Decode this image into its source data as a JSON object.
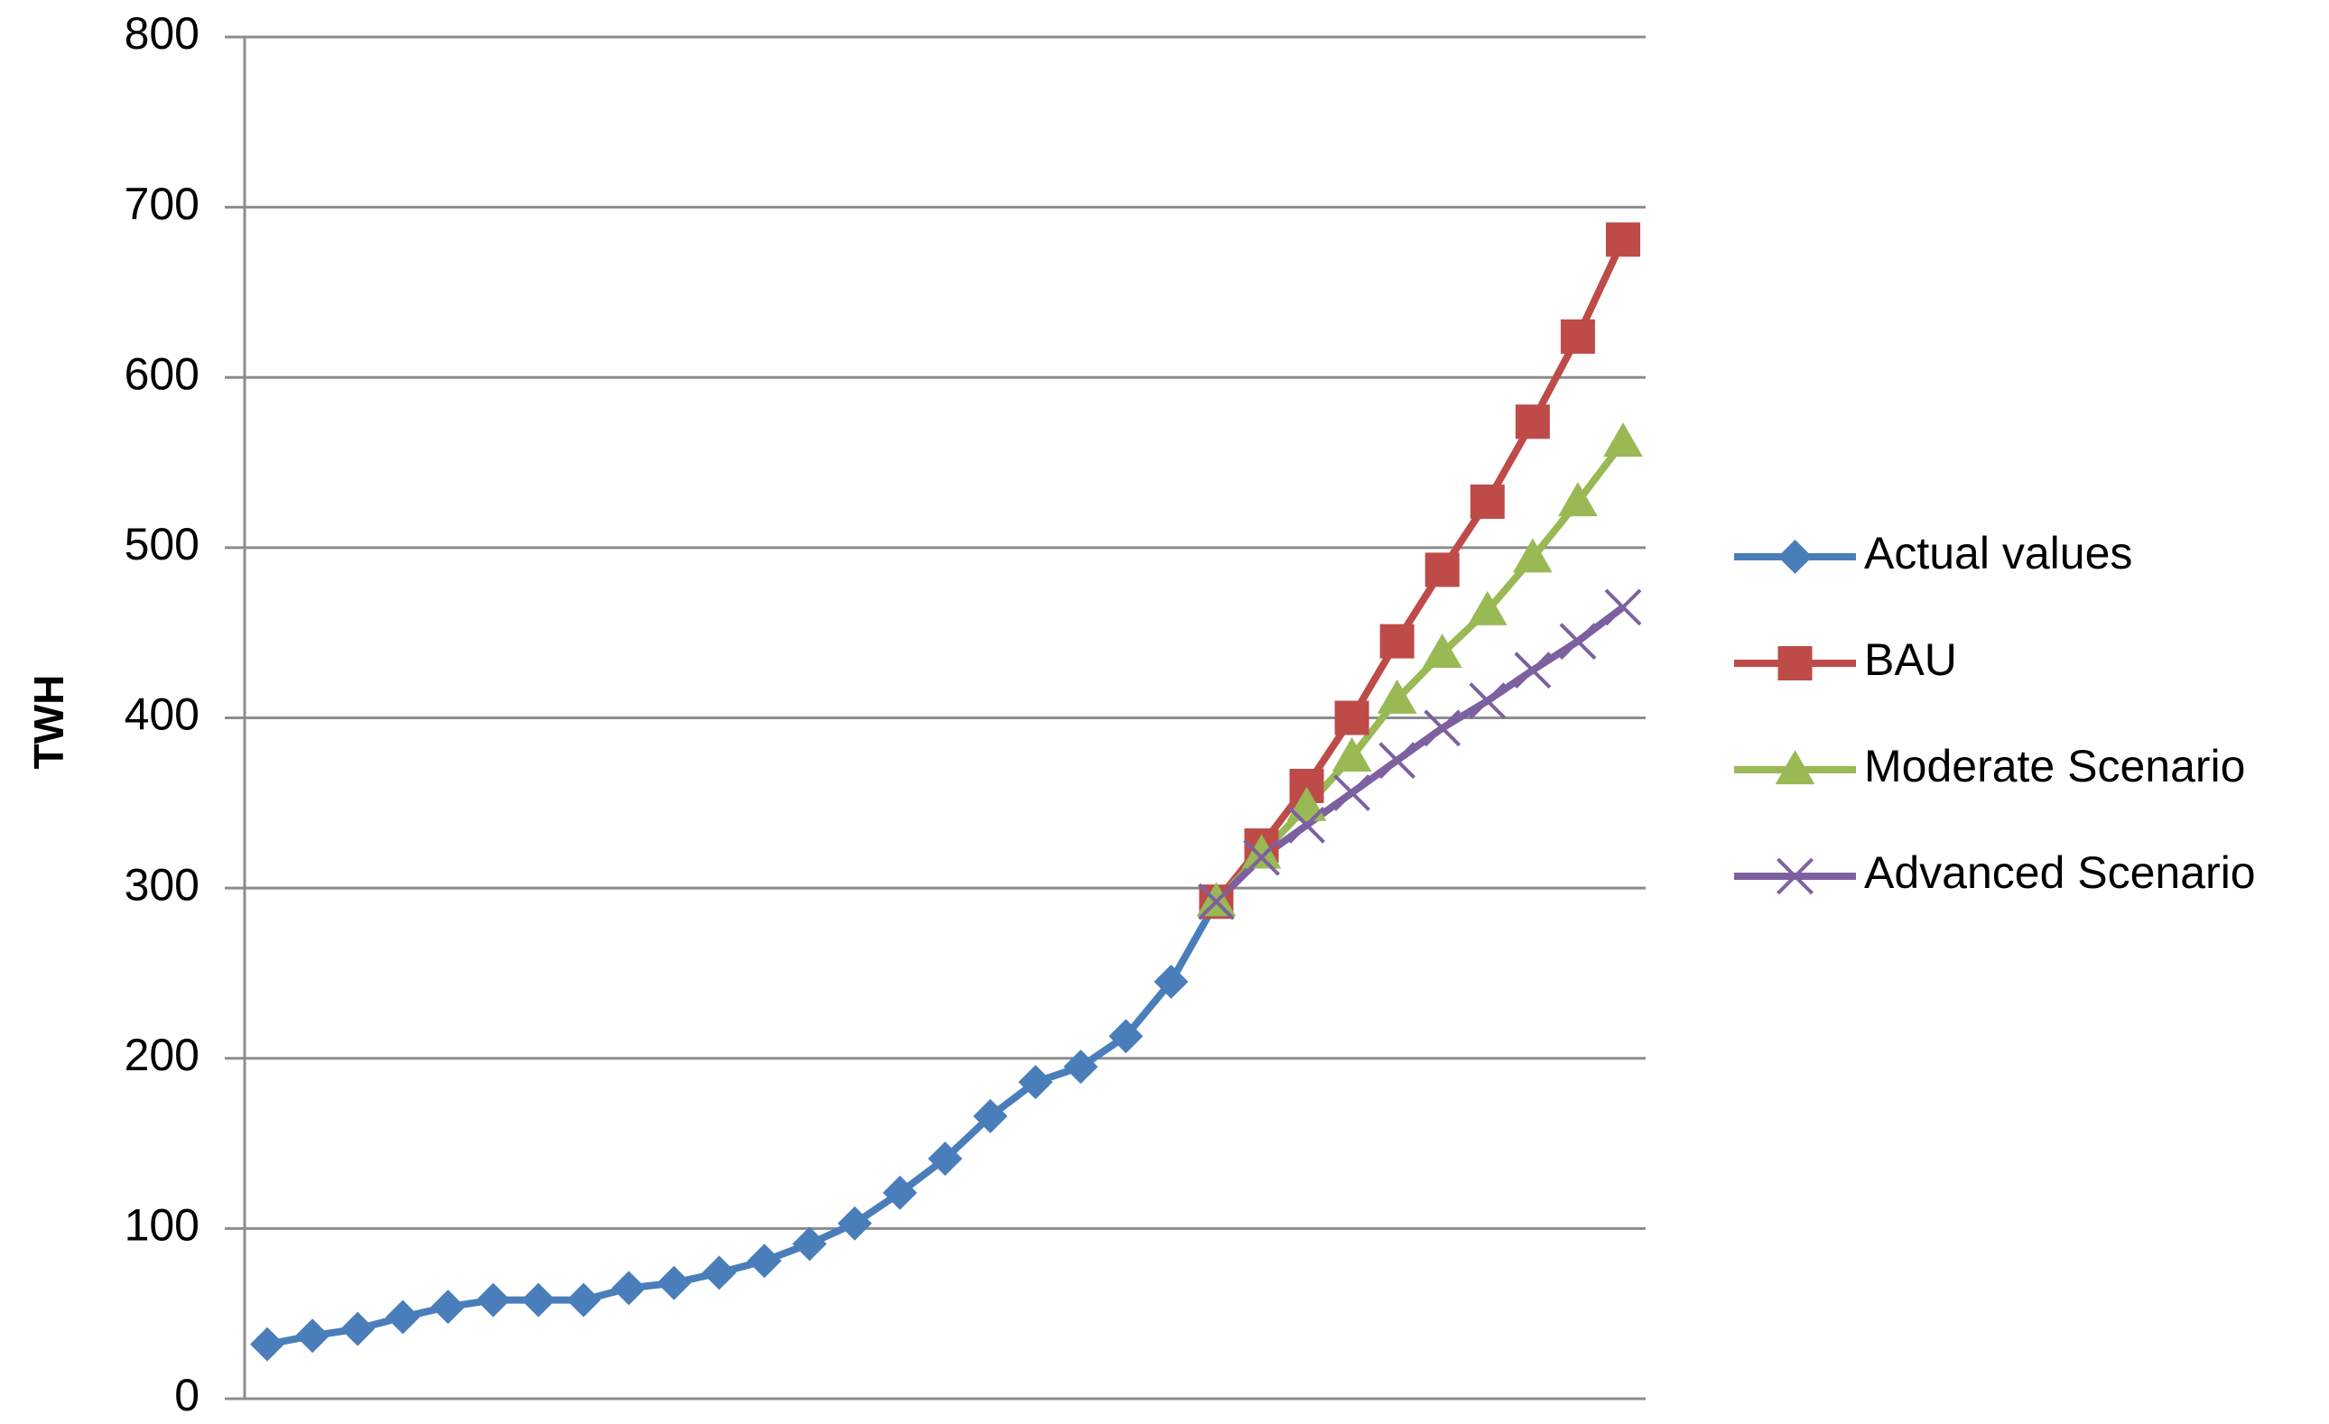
{
  "chart_data": {
    "type": "line",
    "ylabel": "TWH",
    "categories": [
      null,
      null,
      null,
      null,
      null,
      null,
      null,
      null,
      null,
      null,
      null,
      null,
      null,
      null,
      null,
      null,
      null,
      null,
      null,
      null,
      null,
      null,
      null,
      null,
      null,
      null,
      null,
      null,
      null,
      null,
      null
    ],
    "series": [
      {
        "name": "Actual values",
        "color": "#4a7ebb",
        "marker": "diamond",
        "values": [
          32,
          37,
          41,
          48,
          54,
          58,
          58,
          58,
          65,
          68,
          74,
          81,
          91,
          103,
          121,
          141,
          166,
          186,
          195,
          213,
          245,
          292,
          null,
          null,
          null,
          null,
          null,
          null,
          null,
          null,
          null
        ]
      },
      {
        "name": "BAU",
        "color": "#be4b48",
        "marker": "square",
        "values": [
          null,
          null,
          null,
          null,
          null,
          null,
          null,
          null,
          null,
          null,
          null,
          null,
          null,
          null,
          null,
          null,
          null,
          null,
          null,
          null,
          null,
          292,
          325,
          360,
          400,
          445,
          487,
          527,
          574,
          624,
          681
        ]
      },
      {
        "name": "Moderate Scenario",
        "color": "#98b954",
        "marker": "triangle",
        "values": [
          null,
          null,
          null,
          null,
          null,
          null,
          null,
          null,
          null,
          null,
          null,
          null,
          null,
          null,
          null,
          null,
          null,
          null,
          null,
          null,
          null,
          292,
          320,
          348,
          377,
          411,
          438,
          463,
          494,
          527,
          562
        ]
      },
      {
        "name": "Advanced Scenario",
        "color": "#7d60a0",
        "marker": "x",
        "values": [
          null,
          null,
          null,
          null,
          null,
          null,
          null,
          null,
          null,
          null,
          null,
          null,
          null,
          null,
          null,
          null,
          null,
          null,
          null,
          null,
          null,
          292,
          318,
          337,
          356,
          375,
          394,
          410,
          428,
          445,
          465
        ]
      }
    ],
    "ylim": [
      0,
      800
    ],
    "yticks": [
      0,
      100,
      200,
      300,
      400,
      500,
      600,
      700,
      800
    ],
    "grid": true,
    "legend": "right"
  }
}
